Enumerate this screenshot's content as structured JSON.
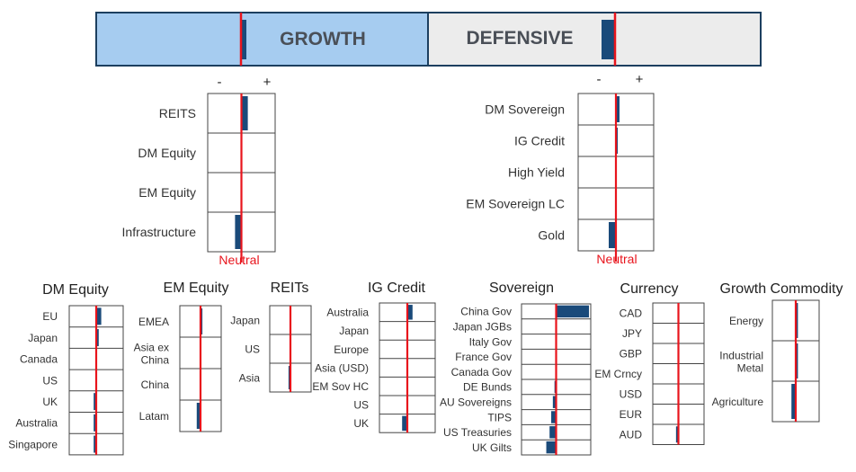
{
  "colors": {
    "growth_fill": "#a6ccf0",
    "defensive_fill": "#ececec",
    "frame": "#1c3f5f",
    "bar": "#1a4a7a",
    "neutral_line": "#e8141c",
    "label": "#333333",
    "neutral_text": "#e8141c"
  },
  "top_bar": {
    "growth_label": "GROWTH",
    "defensive_label": "DEFENSIVE",
    "growth_value": 0.2,
    "defensive_value": -0.5
  },
  "neutral_label": "Neutral",
  "minus_sign": "-",
  "plus_sign": "+",
  "panels": [
    {
      "id": "growth",
      "title": "",
      "items": [
        {
          "label": "REITS",
          "value": 0.2
        },
        {
          "label": "DM Equity",
          "value": 0
        },
        {
          "label": "EM Equity",
          "value": 0
        },
        {
          "label": "Infrastructure",
          "value": -0.2
        }
      ]
    },
    {
      "id": "defensive",
      "title": "",
      "items": [
        {
          "label": "DM Sovereign",
          "value": 0.1
        },
        {
          "label": "IG Credit",
          "value": 0.05
        },
        {
          "label": "High Yield",
          "value": 0
        },
        {
          "label": "EM Sovereign LC",
          "value": 0
        },
        {
          "label": "Gold",
          "value": -0.2
        }
      ]
    },
    {
      "id": "dm-equity",
      "title": "DM Equity",
      "items": [
        {
          "label": "EU",
          "value": 0.2
        },
        {
          "label": "Japan",
          "value": 0.1
        },
        {
          "label": "Canada",
          "value": 0
        },
        {
          "label": "US",
          "value": 0
        },
        {
          "label": "UK",
          "value": -0.1
        },
        {
          "label": "Australia",
          "value": -0.1
        },
        {
          "label": "Singapore",
          "value": -0.1
        }
      ]
    },
    {
      "id": "em-equity",
      "title": "EM Equity",
      "items": [
        {
          "label": "EMEA",
          "value": 0.1
        },
        {
          "label": "Asia ex China",
          "value": 0
        },
        {
          "label": "China",
          "value": 0
        },
        {
          "label": "Latam",
          "value": -0.2
        }
      ]
    },
    {
      "id": "reits",
      "title": "REITs",
      "items": [
        {
          "label": "Japan",
          "value": 0
        },
        {
          "label": "US",
          "value": 0
        },
        {
          "label": "Asia",
          "value": -0.1
        }
      ]
    },
    {
      "id": "ig-credit",
      "title": "IG Credit",
      "items": [
        {
          "label": "Australia",
          "value": 0.2
        },
        {
          "label": "Japan",
          "value": 0
        },
        {
          "label": "Europe",
          "value": 0
        },
        {
          "label": "Asia (USD)",
          "value": 0
        },
        {
          "label": "EM Sov HC",
          "value": 0
        },
        {
          "label": "US",
          "value": 0
        },
        {
          "label": "UK",
          "value": -0.2
        }
      ]
    },
    {
      "id": "sovereign",
      "title": "Sovereign",
      "items": [
        {
          "label": "China Gov",
          "value": 1
        },
        {
          "label": "Japan JGBs",
          "value": 0
        },
        {
          "label": "Italy Gov",
          "value": 0
        },
        {
          "label": "France Gov",
          "value": 0
        },
        {
          "label": "Canada Gov",
          "value": 0
        },
        {
          "label": "DE Bunds",
          "value": -0.05
        },
        {
          "label": "AU Sovereigns",
          "value": -0.1
        },
        {
          "label": "TIPS",
          "value": -0.15
        },
        {
          "label": "US Treasuries",
          "value": -0.2
        },
        {
          "label": "UK Gilts",
          "value": -0.3
        }
      ]
    },
    {
      "id": "currency",
      "title": "Currency",
      "items": [
        {
          "label": "CAD",
          "value": 0
        },
        {
          "label": "JPY",
          "value": 0
        },
        {
          "label": "GBP",
          "value": 0
        },
        {
          "label": "EM Crncy",
          "value": 0
        },
        {
          "label": "USD",
          "value": 0
        },
        {
          "label": "EUR",
          "value": 0
        },
        {
          "label": "AUD",
          "value": -0.1
        }
      ]
    },
    {
      "id": "growth-commodity",
      "title": "Growth Commodity",
      "items": [
        {
          "label": "Energy",
          "value": 0.1
        },
        {
          "label": "Industrial Metal",
          "value": 0.1
        },
        {
          "label": "Agriculture",
          "value": -0.2
        }
      ]
    }
  ]
}
